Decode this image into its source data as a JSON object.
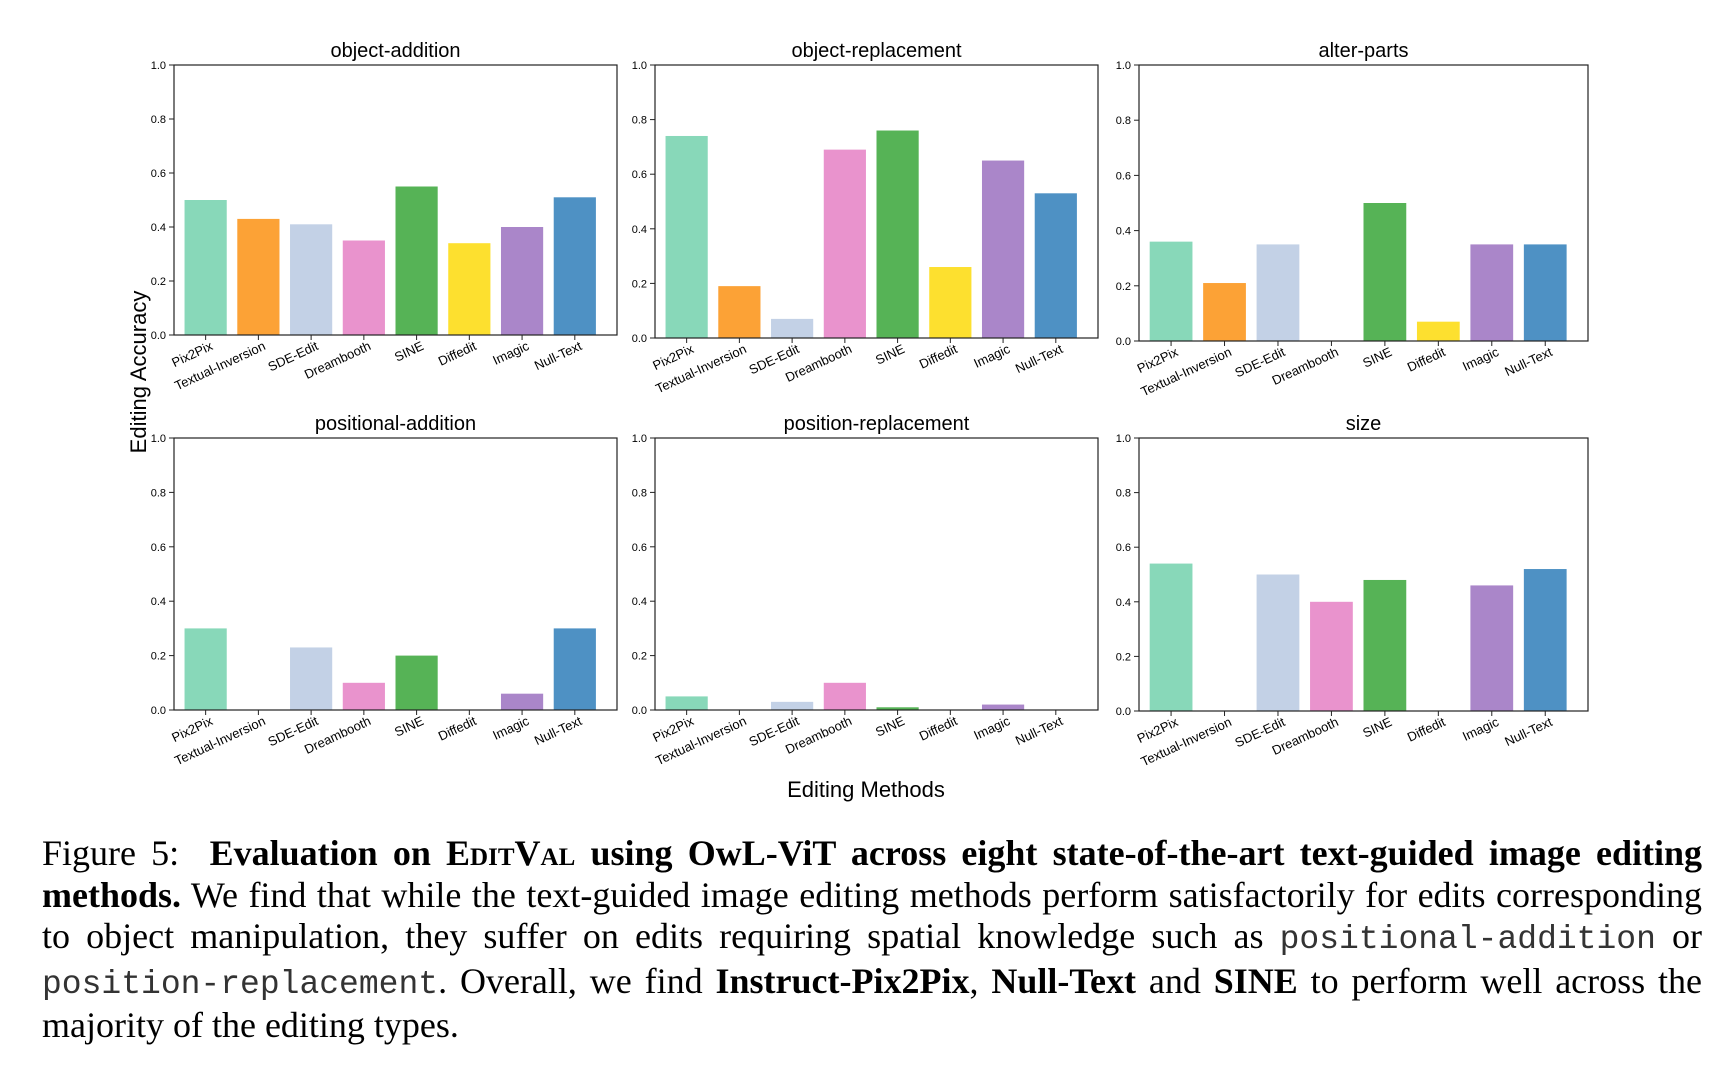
{
  "figure": {
    "ylabel": "Editing Accuracy",
    "xlabel": "Editing Methods"
  },
  "chart_data": [
    {
      "type": "bar",
      "title": "object-addition",
      "categories": [
        "Pix2Pix",
        "Textual-Inversion",
        "SDE-Edit",
        "Dreambooth",
        "SINE",
        "Diffedit",
        "Imagic",
        "Null-Text"
      ],
      "values": [
        0.5,
        0.43,
        0.41,
        0.35,
        0.55,
        0.34,
        0.4,
        0.51
      ],
      "ylim": [
        0,
        1.0
      ],
      "yticks": [
        "0.0",
        "0.2",
        "0.4",
        "0.6",
        "0.8",
        "1.0"
      ]
    },
    {
      "type": "bar",
      "title": "object-replacement",
      "categories": [
        "Pix2Pix",
        "Textual-Inversion",
        "SDE-Edit",
        "Dreambooth",
        "SINE",
        "Diffedit",
        "Imagic",
        "Null-Text"
      ],
      "values": [
        0.74,
        0.19,
        0.07,
        0.69,
        0.76,
        0.26,
        0.65,
        0.53
      ],
      "ylim": [
        0,
        1.0
      ],
      "yticks": [
        "0.0",
        "0.2",
        "0.4",
        "0.6",
        "0.8",
        "1.0"
      ]
    },
    {
      "type": "bar",
      "title": "alter-parts",
      "categories": [
        "Pix2Pix",
        "Textual-Inversion",
        "SDE-Edit",
        "Dreambooth",
        "SINE",
        "Diffedit",
        "Imagic",
        "Null-Text"
      ],
      "values": [
        0.36,
        0.21,
        0.35,
        0.0,
        0.5,
        0.07,
        0.35,
        0.35
      ],
      "ylim": [
        0,
        1.0
      ],
      "yticks": [
        "0.0",
        "0.2",
        "0.4",
        "0.6",
        "0.8",
        "1.0"
      ]
    },
    {
      "type": "bar",
      "title": "positional-addition",
      "categories": [
        "Pix2Pix",
        "Textual-Inversion",
        "SDE-Edit",
        "Dreambooth",
        "SINE",
        "Diffedit",
        "Imagic",
        "Null-Text"
      ],
      "values": [
        0.3,
        0.0,
        0.23,
        0.1,
        0.2,
        0.0,
        0.06,
        0.3
      ],
      "ylim": [
        0,
        1.0
      ],
      "yticks": [
        "0.0",
        "0.2",
        "0.4",
        "0.6",
        "0.8",
        "1.0"
      ]
    },
    {
      "type": "bar",
      "title": "position-replacement",
      "categories": [
        "Pix2Pix",
        "Textual-Inversion",
        "SDE-Edit",
        "Dreambooth",
        "SINE",
        "Diffedit",
        "Imagic",
        "Null-Text"
      ],
      "values": [
        0.05,
        0.0,
        0.03,
        0.1,
        0.01,
        0.0,
        0.02,
        0.0
      ],
      "ylim": [
        0,
        1.0
      ],
      "yticks": [
        "0.0",
        "0.2",
        "0.4",
        "0.6",
        "0.8",
        "1.0"
      ]
    },
    {
      "type": "bar",
      "title": "size",
      "categories": [
        "Pix2Pix",
        "Textual-Inversion",
        "SDE-Edit",
        "Dreambooth",
        "SINE",
        "Diffedit",
        "Imagic",
        "Null-Text"
      ],
      "values": [
        0.54,
        0.0,
        0.5,
        0.4,
        0.48,
        0.0,
        0.46,
        0.52
      ],
      "ylim": [
        0,
        1.0
      ],
      "yticks": [
        "0.0",
        "0.2",
        "0.4",
        "0.6",
        "0.8",
        "1.0"
      ]
    }
  ],
  "colors": [
    "#88d8b9",
    "#fca236",
    "#c3d1e6",
    "#e993cd",
    "#56b356",
    "#fde02f",
    "#aa86c9",
    "#4e91c4"
  ],
  "caption": {
    "figure_label": "Figure 5:",
    "bold_1": "Evaluation on",
    "editval": "EditVal",
    "bold_2": "using OwL-ViT across eight state-of-the-art text-guided image editing methods.",
    "text_1": "We find that while the text-guided image editing methods perform satisfactorily for edits corresponding to object manipulation, they suffer on edits requiring spatial knowledge such as",
    "mono_1": "positional-addition",
    "text_2": "or",
    "mono_2": "position-replacement",
    "text_3": ". Overall, we find",
    "bold_3": "Instruct-Pix2Pix",
    "text_4": ",",
    "bold_4": "Null-Text",
    "text_5": "and",
    "bold_5": "SINE",
    "text_6": "to perform well across the majority of the editing types."
  }
}
